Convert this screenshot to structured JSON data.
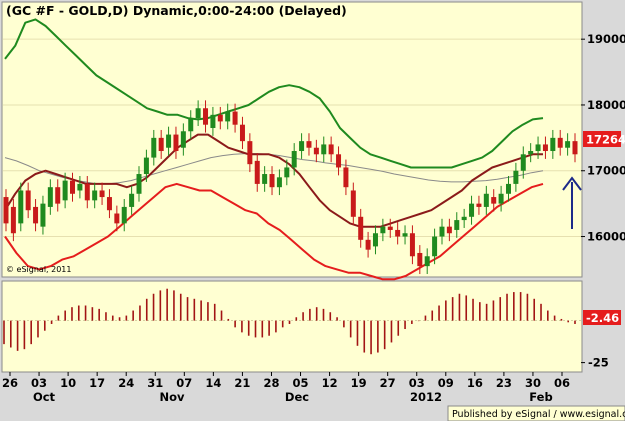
{
  "chart_data": {
    "type": "candlestick",
    "title": "(GC #F - GOLD,D) Dynamic,0:00-24:00 (Delayed)",
    "watermark": "© eSignal, 2011",
    "publisher": "Published by eSignal / www.esignal.com",
    "last_price": "17264",
    "price_axis": {
      "range": [
        15400,
        19550
      ],
      "ticks": [
        "19000",
        "18000",
        "17000",
        "16000"
      ]
    },
    "oscillator_axis": {
      "range": [
        -30,
        23
      ],
      "ticks": [
        "-25"
      ],
      "last_value": "-2.46"
    },
    "x_ticks": [
      "26",
      "03",
      "10",
      "17",
      "24",
      "31",
      "07",
      "14",
      "21",
      "28",
      "05",
      "12",
      "19",
      "27",
      "03",
      "09",
      "16",
      "23",
      "30",
      "06"
    ],
    "months": [
      "Oct",
      "Nov",
      "Dec",
      "2012",
      "Feb"
    ],
    "upper_band": [
      18700,
      18900,
      19250,
      19300,
      19200,
      19050,
      18900,
      18750,
      18600,
      18450,
      18350,
      18250,
      18150,
      18050,
      17950,
      17900,
      17850,
      17850,
      17800,
      17780,
      17800,
      17850,
      17900,
      17950,
      18000,
      18100,
      18200,
      18270,
      18300,
      18270,
      18200,
      18100,
      17900,
      17650,
      17500,
      17350,
      17250,
      17200,
      17150,
      17100,
      17050,
      17050,
      17050,
      17050,
      17050,
      17100,
      17150,
      17200,
      17300,
      17450,
      17600,
      17700,
      17780,
      17800
    ],
    "upper_mid": [
      16400,
      16650,
      16850,
      16950,
      17000,
      16950,
      16900,
      16850,
      16800,
      16800,
      16800,
      16800,
      16750,
      16800,
      16900,
      17050,
      17200,
      17350,
      17450,
      17550,
      17550,
      17450,
      17350,
      17300,
      17250,
      17250,
      17250,
      17200,
      17100,
      16950,
      16750,
      16550,
      16400,
      16300,
      16200,
      16150,
      16150,
      16150,
      16200,
      16250,
      16300,
      16350,
      16400,
      16500,
      16600,
      16700,
      16850,
      16950,
      17050,
      17100,
      17150,
      17200,
      17250,
      17250
    ],
    "lower_band": [
      16000,
      15750,
      15550,
      15500,
      15550,
      15650,
      15700,
      15800,
      15900,
      16000,
      16150,
      16300,
      16450,
      16600,
      16750,
      16800,
      16750,
      16700,
      16700,
      16600,
      16500,
      16400,
      16350,
      16200,
      16100,
      15950,
      15800,
      15650,
      15550,
      15500,
      15450,
      15450,
      15400,
      15350,
      15350,
      15400,
      15500,
      15600,
      15700,
      15850,
      16000,
      16150,
      16300,
      16450,
      16550,
      16650,
      16750,
      16800
    ],
    "midline": [
      17200,
      17150,
      17080,
      17000,
      16950,
      16900,
      16860,
      16830,
      16800,
      16800,
      16820,
      16850,
      16900,
      16950,
      17000,
      17050,
      17100,
      17150,
      17200,
      17230,
      17250,
      17260,
      17260,
      17250,
      17230,
      17200,
      17170,
      17150,
      17120,
      17100,
      17080,
      17050,
      17020,
      16990,
      16950,
      16920,
      16890,
      16860,
      16840,
      16830,
      16830,
      16840,
      16850,
      16870,
      16900,
      16930,
      16970,
      17000
    ],
    "candles": [
      [
        16600,
        16200
      ],
      [
        16450,
        16050
      ],
      [
        16200,
        16700
      ],
      [
        16700,
        16400
      ],
      [
        16450,
        16200
      ],
      [
        16150,
        16500
      ],
      [
        16450,
        16750
      ],
      [
        16750,
        16500
      ],
      [
        16550,
        16850
      ],
      [
        16850,
        16650
      ],
      [
        16700,
        16800
      ],
      [
        16800,
        16550
      ],
      [
        16550,
        16700
      ],
      [
        16700,
        16600
      ],
      [
        16600,
        16400
      ],
      [
        16350,
        16200
      ],
      [
        16200,
        16450
      ],
      [
        16450,
        16650
      ],
      [
        16650,
        16950
      ],
      [
        16950,
        17200
      ],
      [
        17200,
        17500
      ],
      [
        17500,
        17300
      ],
      [
        17350,
        17550
      ],
      [
        17550,
        17300
      ],
      [
        17350,
        17600
      ],
      [
        17600,
        17800
      ],
      [
        17800,
        17950
      ],
      [
        17950,
        17700
      ],
      [
        17650,
        17850
      ],
      [
        17850,
        17750
      ],
      [
        17750,
        17900
      ],
      [
        17900,
        17700
      ],
      [
        17700,
        17450
      ],
      [
        17450,
        17100
      ],
      [
        17150,
        16800
      ],
      [
        16800,
        16950
      ],
      [
        16950,
        16750
      ],
      [
        16750,
        16900
      ],
      [
        16900,
        17050
      ],
      [
        17050,
        17300
      ],
      [
        17300,
        17450
      ],
      [
        17450,
        17350
      ],
      [
        17350,
        17250
      ],
      [
        17250,
        17400
      ],
      [
        17400,
        17250
      ],
      [
        17250,
        17050
      ],
      [
        17050,
        16750
      ],
      [
        16700,
        16300
      ],
      [
        16300,
        15950
      ],
      [
        15950,
        15800
      ],
      [
        15850,
        16050
      ],
      [
        16050,
        16150
      ],
      [
        16150,
        16100
      ],
      [
        16100,
        16000
      ],
      [
        16000,
        16050
      ],
      [
        16050,
        15700
      ],
      [
        15750,
        15550
      ],
      [
        15550,
        15700
      ],
      [
        15700,
        16000
      ],
      [
        16000,
        16150
      ],
      [
        16150,
        16050
      ],
      [
        16100,
        16250
      ],
      [
        16250,
        16300
      ],
      [
        16300,
        16500
      ],
      [
        16500,
        16450
      ],
      [
        16450,
        16650
      ],
      [
        16600,
        16500
      ],
      [
        16500,
        16650
      ],
      [
        16650,
        16800
      ],
      [
        16800,
        17000
      ],
      [
        17000,
        17250
      ],
      [
        17250,
        17300
      ],
      [
        17300,
        17400
      ],
      [
        17400,
        17300
      ],
      [
        17300,
        17500
      ],
      [
        17500,
        17350
      ],
      [
        17350,
        17450
      ],
      [
        17450,
        17250
      ]
    ],
    "oscillator": [
      -14,
      -16,
      -18,
      -17,
      -14,
      -10,
      -6,
      -2,
      3,
      6,
      8,
      9,
      9,
      8,
      7,
      5,
      3,
      2,
      3,
      6,
      9,
      13,
      16,
      18,
      19,
      18,
      16,
      14,
      13,
      12,
      11,
      10,
      6,
      1,
      -4,
      -7,
      -9,
      -10,
      -10,
      -9,
      -7,
      -4,
      -2,
      2,
      5,
      7,
      8,
      7,
      5,
      2,
      -4,
      -10,
      -15,
      -19,
      -20,
      -19,
      -17,
      -13,
      -9,
      -5,
      -2,
      0,
      3,
      6,
      9,
      12,
      14,
      16,
      15,
      13,
      11,
      10,
      12,
      14,
      16,
      17,
      17,
      16,
      13,
      10,
      6,
      3,
      1,
      -1,
      -2
    ]
  }
}
